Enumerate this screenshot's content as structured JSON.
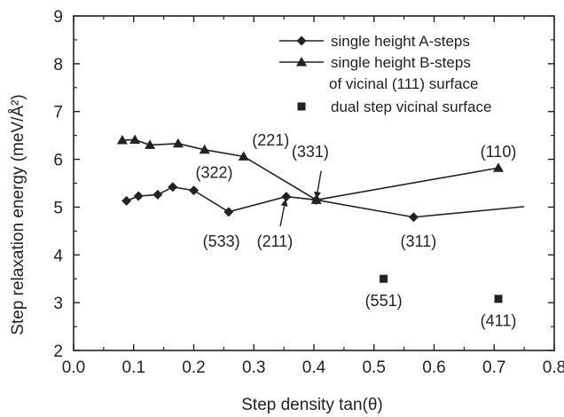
{
  "chart_data": {
    "type": "line",
    "xlabel": "Step density tan(θ)",
    "ylabel": "Step relaxation energy (meV/Å²)",
    "xlim": [
      0.0,
      0.8
    ],
    "ylim": [
      2,
      9
    ],
    "xticks": [
      "0.0",
      "0.1",
      "0.2",
      "0.3",
      "0.4",
      "0.5",
      "0.6",
      "0.7",
      "0.8"
    ],
    "yticks": [
      "2",
      "3",
      "4",
      "5",
      "6",
      "7",
      "8",
      "9"
    ],
    "grid": false,
    "legend_position": "top-right",
    "series": [
      {
        "name": "single height A-steps",
        "marker": "diamond",
        "line": true,
        "x": [
          0.088,
          0.108,
          0.14,
          0.165,
          0.2,
          0.258,
          0.354,
          0.404,
          0.566,
          0.75
        ],
        "y": [
          5.13,
          5.23,
          5.26,
          5.42,
          5.35,
          4.9,
          5.22,
          5.15,
          4.79,
          5.01
        ],
        "marker_mask": [
          true,
          true,
          true,
          true,
          true,
          true,
          true,
          true,
          true,
          false
        ]
      },
      {
        "name": "single height B-steps of vicinal (111) surface",
        "name_lines": [
          "single height B-steps",
          "of vicinal (111) surface"
        ],
        "marker": "triangle",
        "line": true,
        "x": [
          0.081,
          0.102,
          0.127,
          0.174,
          0.218,
          0.283,
          0.404,
          0.707
        ],
        "y": [
          6.4,
          6.41,
          6.3,
          6.33,
          6.2,
          6.06,
          5.15,
          5.82
        ]
      },
      {
        "name": "dual step vicinal surface",
        "marker": "square",
        "line": false,
        "x": [
          0.516,
          0.707
        ],
        "y": [
          3.5,
          3.08
        ]
      }
    ],
    "annotations": [
      {
        "text": "(322)",
        "x": 0.234,
        "y": 5.72
      },
      {
        "text": "(221)",
        "x": 0.328,
        "y": 6.4
      },
      {
        "text": "(331)",
        "x": 0.394,
        "y": 6.16,
        "arrow_to": [
          0.404,
          5.17
        ],
        "arrow_from": [
          0.412,
          5.76
        ]
      },
      {
        "text": "(110)",
        "x": 0.707,
        "y": 6.16
      },
      {
        "text": "(533)",
        "x": 0.246,
        "y": 4.28
      },
      {
        "text": "(211)",
        "x": 0.335,
        "y": 4.28,
        "arrow_to": [
          0.353,
          5.17
        ],
        "arrow_from": [
          0.344,
          4.6
        ]
      },
      {
        "text": "(311)",
        "x": 0.574,
        "y": 4.28
      },
      {
        "text": "(551)",
        "x": 0.516,
        "y": 3.04
      },
      {
        "text": "(411)",
        "x": 0.707,
        "y": 2.62
      }
    ]
  }
}
